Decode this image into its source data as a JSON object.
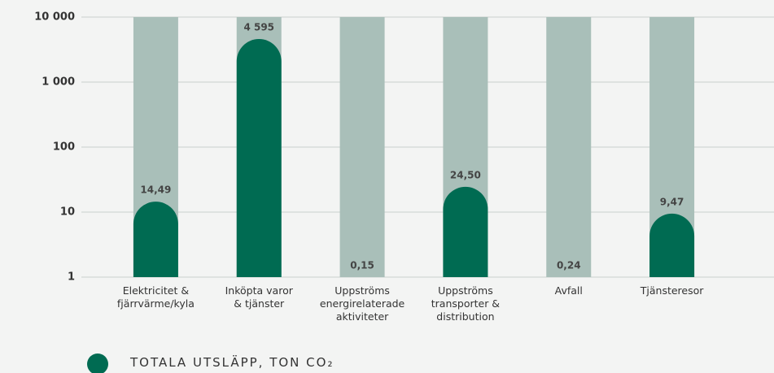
{
  "chart_data": {
    "type": "bar",
    "log_scale": true,
    "categories": [
      "Elektricitet &\nfjärrvärme/kyla",
      "Inköpta varor\n& tjänster",
      "Uppströms\nenergirelaterade\naktiviteter",
      "Uppströms\ntransporter &\ndistribution",
      "Avfall",
      "Tjänsteresor"
    ],
    "series": [
      {
        "name": "TOTALA UTSLÄPP, TON CO₂",
        "color": "#006b52",
        "values": [
          14.49,
          4595,
          0.15,
          24.5,
          0.24,
          9.47
        ],
        "value_labels": [
          "14,49",
          "4 595",
          "0,15",
          "24,50",
          "0,24",
          "9,47"
        ]
      }
    ],
    "ylim": [
      1,
      10000
    ],
    "yticks": [
      1,
      10,
      100,
      {
        "value": 1000,
        "label": "1 000"
      },
      {
        "value": 10000,
        "label": "10 000"
      }
    ],
    "grid": true
  }
}
